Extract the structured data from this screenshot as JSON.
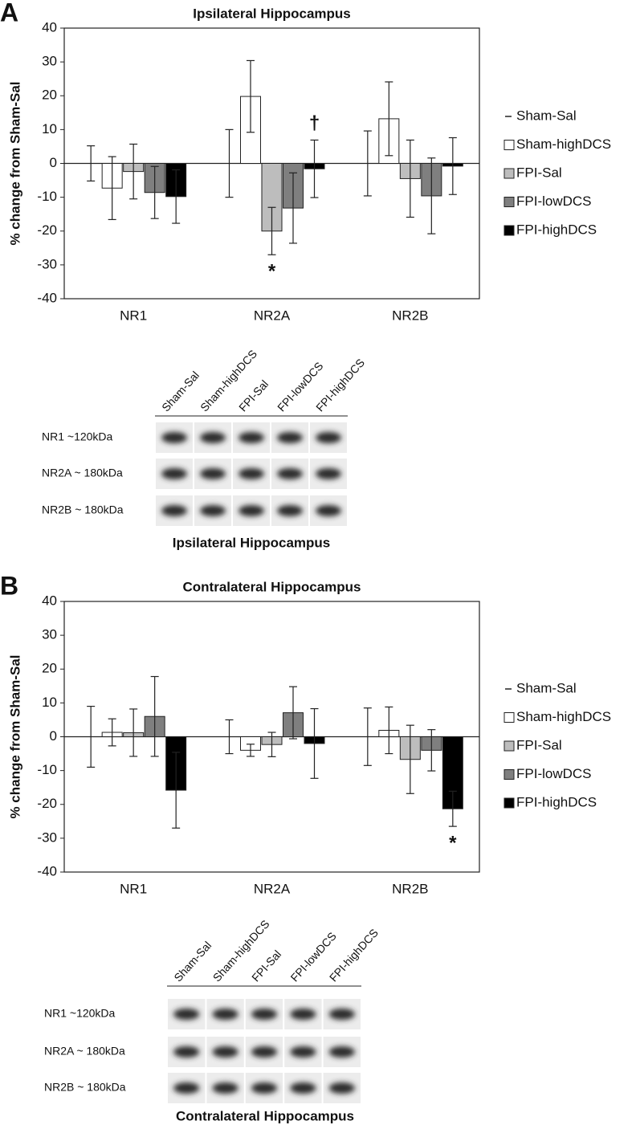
{
  "chart_data": [
    {
      "type": "bar",
      "panel": "A",
      "title": "Ipsilateral Hippocampus",
      "ylabel": "% change from Sham-Sal",
      "categories": [
        "NR1",
        "NR2A",
        "NR2B"
      ],
      "series": [
        {
          "name": "Sham-Sal",
          "color": "#000000",
          "values": [
            0,
            0,
            0
          ],
          "errors": [
            5.2,
            10,
            9.6
          ]
        },
        {
          "name": "Sham-highDCS",
          "color": "#ffffff",
          "values": [
            -7.3,
            19.8,
            13.2
          ],
          "errors": [
            9.3,
            10.6,
            10.9
          ]
        },
        {
          "name": "FPI-Sal",
          "color": "#bdbdbd",
          "values": [
            -2.4,
            -20,
            -4.5
          ],
          "errors": [
            8.1,
            7,
            11.4
          ]
        },
        {
          "name": "FPI-lowDCS",
          "color": "#7f7f7f",
          "values": [
            -8.6,
            -13.2,
            -9.6
          ],
          "errors": [
            7.7,
            10.4,
            11.2
          ]
        },
        {
          "name": "FPI-highDCS",
          "color": "#000000",
          "values": [
            -9.8,
            -1.6,
            -0.8
          ],
          "errors": [
            7.9,
            8.5,
            8.4
          ]
        }
      ],
      "annotations": [
        {
          "text": "*",
          "series": "FPI-Sal",
          "category": "NR2A",
          "position": "below"
        },
        {
          "text": "†",
          "series": "FPI-highDCS",
          "category": "NR2A",
          "position": "above"
        }
      ],
      "ylim": [
        -40,
        40
      ],
      "yticks": [
        -40,
        -30,
        -20,
        -10,
        0,
        10,
        20,
        30,
        40
      ],
      "legend": "right"
    },
    {
      "type": "bar",
      "panel": "B",
      "title": "Contralateral Hippocampus",
      "ylabel": "% change from Sham-Sal",
      "categories": [
        "NR1",
        "NR2A",
        "NR2B"
      ],
      "series": [
        {
          "name": "Sham-Sal",
          "color": "#000000",
          "values": [
            0,
            0,
            0
          ],
          "errors": [
            9,
            5,
            8.5
          ]
        },
        {
          "name": "Sham-highDCS",
          "color": "#ffffff",
          "values": [
            1.3,
            -4,
            1.9
          ],
          "errors": [
            4,
            1.8,
            6.9
          ]
        },
        {
          "name": "FPI-Sal",
          "color": "#bdbdbd",
          "values": [
            1.2,
            -2.3,
            -6.7
          ],
          "errors": [
            7,
            3.6,
            10.1
          ]
        },
        {
          "name": "FPI-lowDCS",
          "color": "#7f7f7f",
          "values": [
            6,
            7.1,
            -4
          ],
          "errors": [
            11.8,
            7.7,
            6.1
          ]
        },
        {
          "name": "FPI-highDCS",
          "color": "#000000",
          "values": [
            -15.8,
            -2,
            -21.3
          ],
          "errors": [
            11.2,
            10.3,
            5.2
          ]
        }
      ],
      "annotations": [
        {
          "text": "*",
          "series": "FPI-highDCS",
          "category": "NR2B",
          "position": "below"
        }
      ],
      "ylim": [
        -40,
        40
      ],
      "yticks": [
        -40,
        -30,
        -20,
        -10,
        0,
        10,
        20,
        30,
        40
      ],
      "legend": "right"
    }
  ],
  "blots": [
    {
      "lanes": [
        "Sham-Sal",
        "Sham-highDCS",
        "FPI-Sal",
        "FPI-lowDCS",
        "FPI-highDCS"
      ],
      "rows": [
        "NR1 ~120kDa",
        "NR2A ~ 180kDa",
        "NR2B ~ 180kDa"
      ],
      "caption": "Ipsilateral Hippocampus"
    },
    {
      "lanes": [
        "Sham-Sal",
        "Sham-highDCS",
        "FPI-Sal",
        "FPI-lowDCS",
        "FPI-highDCS"
      ],
      "rows": [
        "NR1 ~120kDa",
        "NR2A ~ 180kDa",
        "NR2B ~ 180kDa"
      ],
      "caption": "Contralateral Hippocampus"
    }
  ]
}
